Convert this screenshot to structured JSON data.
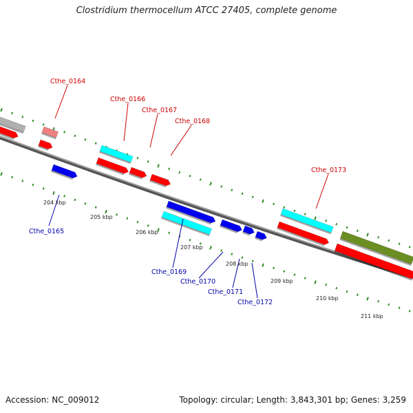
{
  "title": "Clostridium thermocellum ATCC 27405, complete genome",
  "footer": {
    "accession": "Accession: NC_009012",
    "summary": "Topology: circular; Length: 3,843,301 bp; Genes: 3,259"
  },
  "colors": {
    "forward_label": "#cc0000",
    "reverse_label": "#0000aa",
    "cds_red": "#ff0000",
    "cds_blue": "#0000ee",
    "rna_cyan": "#00ffff",
    "olive": "#6b8e23",
    "gray": "#b0b0b0",
    "pink": "#f08080",
    "backbone": "#808080",
    "tick_green": "#2e8b22"
  },
  "kbp_ticks": [
    "204 kbp",
    "205 kbp",
    "206 kbp",
    "207 kbp",
    "208 kbp",
    "209 kbp",
    "210 kbp",
    "211 kbp"
  ],
  "gene_labels": [
    {
      "id": "Cthe_0164",
      "strand": "forward"
    },
    {
      "id": "Cthe_0165",
      "strand": "reverse"
    },
    {
      "id": "Cthe_0166",
      "strand": "forward"
    },
    {
      "id": "Cthe_0167",
      "strand": "forward"
    },
    {
      "id": "Cthe_0168",
      "strand": "forward"
    },
    {
      "id": "Cthe_0169",
      "strand": "reverse"
    },
    {
      "id": "Cthe_0170",
      "strand": "reverse"
    },
    {
      "id": "Cthe_0171",
      "strand": "reverse"
    },
    {
      "id": "Cthe_0172",
      "strand": "reverse"
    },
    {
      "id": "Cthe_0173",
      "strand": "forward"
    }
  ]
}
